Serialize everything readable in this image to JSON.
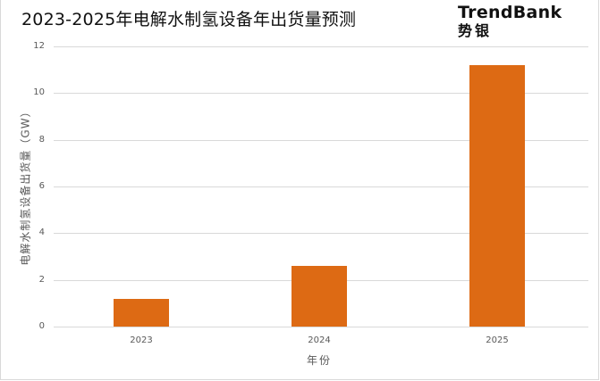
{
  "title": "2023-2025年电解水制氢设备年出货量预测",
  "logo": {
    "en": "TrendBank",
    "cn": "势银"
  },
  "colors": {
    "bar": "#DD6A14",
    "grid": "#D9D9D9",
    "axis_text": "#595959"
  },
  "chart_data": {
    "type": "bar",
    "title": "2023-2025年电解水制氢设备年出货量预测",
    "categories": [
      "2023",
      "2024",
      "2025"
    ],
    "values": [
      1.2,
      2.6,
      11.2
    ],
    "xlabel": "年份",
    "ylabel": "电解水制氢设备出货量（GW）",
    "ylim": [
      0,
      12
    ],
    "yticks": [
      0,
      2,
      4,
      6,
      8,
      10,
      12
    ],
    "grid": true,
    "legend": null
  },
  "axis": {
    "yticks": [
      "0",
      "2",
      "4",
      "6",
      "8",
      "10",
      "12"
    ],
    "xticks": [
      "2023",
      "2024",
      "2025"
    ],
    "xlabel": "年份",
    "ylabel": "电解水制氢设备出货量（GW）"
  }
}
